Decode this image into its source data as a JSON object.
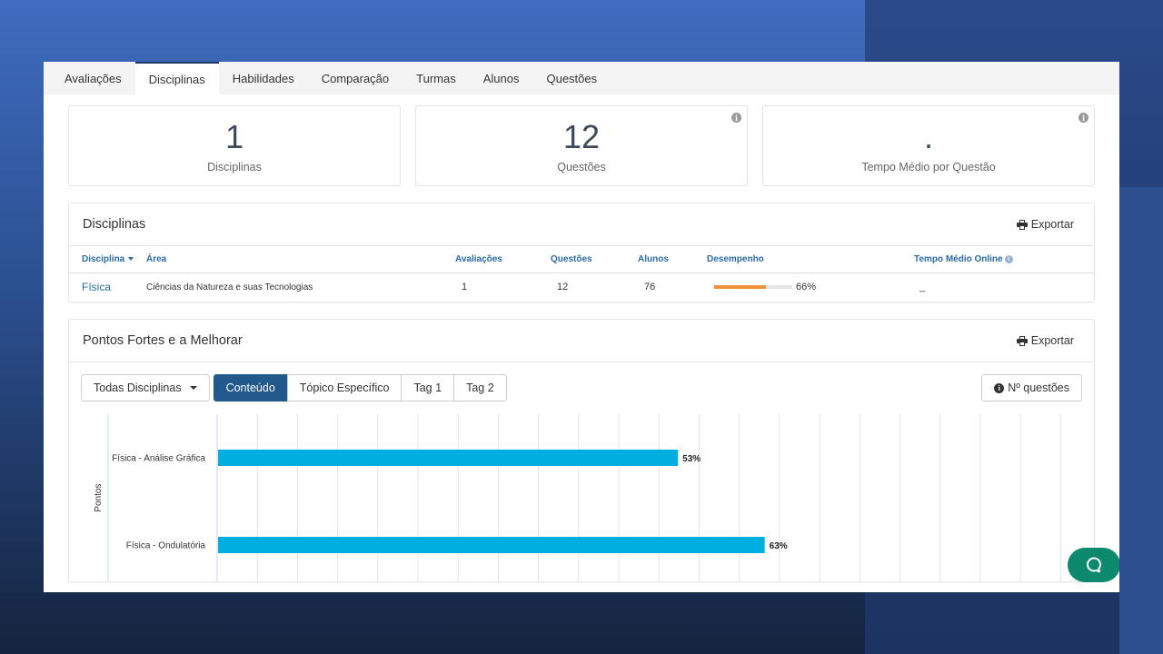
{
  "tabs": [
    "Avaliações",
    "Disciplinas",
    "Habilidades",
    "Comparação",
    "Turmas",
    "Alunos",
    "Questões"
  ],
  "active_tab": "Disciplinas",
  "cards": [
    {
      "value": "1",
      "label": "Disciplinas",
      "info": false
    },
    {
      "value": "12",
      "label": "Questões",
      "info": true
    },
    {
      "value": ".",
      "label": "Tempo Médio por Questão",
      "info": true
    }
  ],
  "disciplinas_panel": {
    "title": "Disciplinas",
    "export_label": "Exportar",
    "columns": [
      "Disciplina",
      "Área",
      "Avaliações",
      "Questões",
      "Alunos",
      "Desempenho",
      "Tempo Médio Online"
    ],
    "rows": [
      {
        "disciplina": "Física",
        "area": "Ciências da Natureza e suas Tecnologias",
        "avaliacoes": "1",
        "questoes": "12",
        "alunos": "76",
        "desempenho": 66,
        "desempenho_label": "66%",
        "tempo": "_"
      }
    ]
  },
  "pontos_panel": {
    "title": "Pontos Fortes e a Melhorar",
    "export_label": "Exportar",
    "dropdown_label": "Todas Disciplinas",
    "filter_buttons": [
      "Conteúdo",
      "Tópico Específico",
      "Tag 1",
      "Tag 2"
    ],
    "active_filter": "Conteúdo",
    "nq_label": "Nº questões"
  },
  "chart_data": {
    "type": "bar",
    "orientation": "horizontal",
    "categories": [
      "Física - Análise Gráfica",
      "Física - Ondulatória"
    ],
    "values": [
      53,
      63
    ],
    "value_labels": [
      "53%",
      "63%"
    ],
    "ylabel": "Pontos",
    "xlim": [
      0,
      100
    ],
    "grid": true,
    "bar_color": "#00aee0"
  },
  "colors": {
    "accent": "#22598c",
    "link": "#2a6aa8",
    "performance_bar": "#f0923c",
    "chat_button": "#0d8a6e"
  }
}
